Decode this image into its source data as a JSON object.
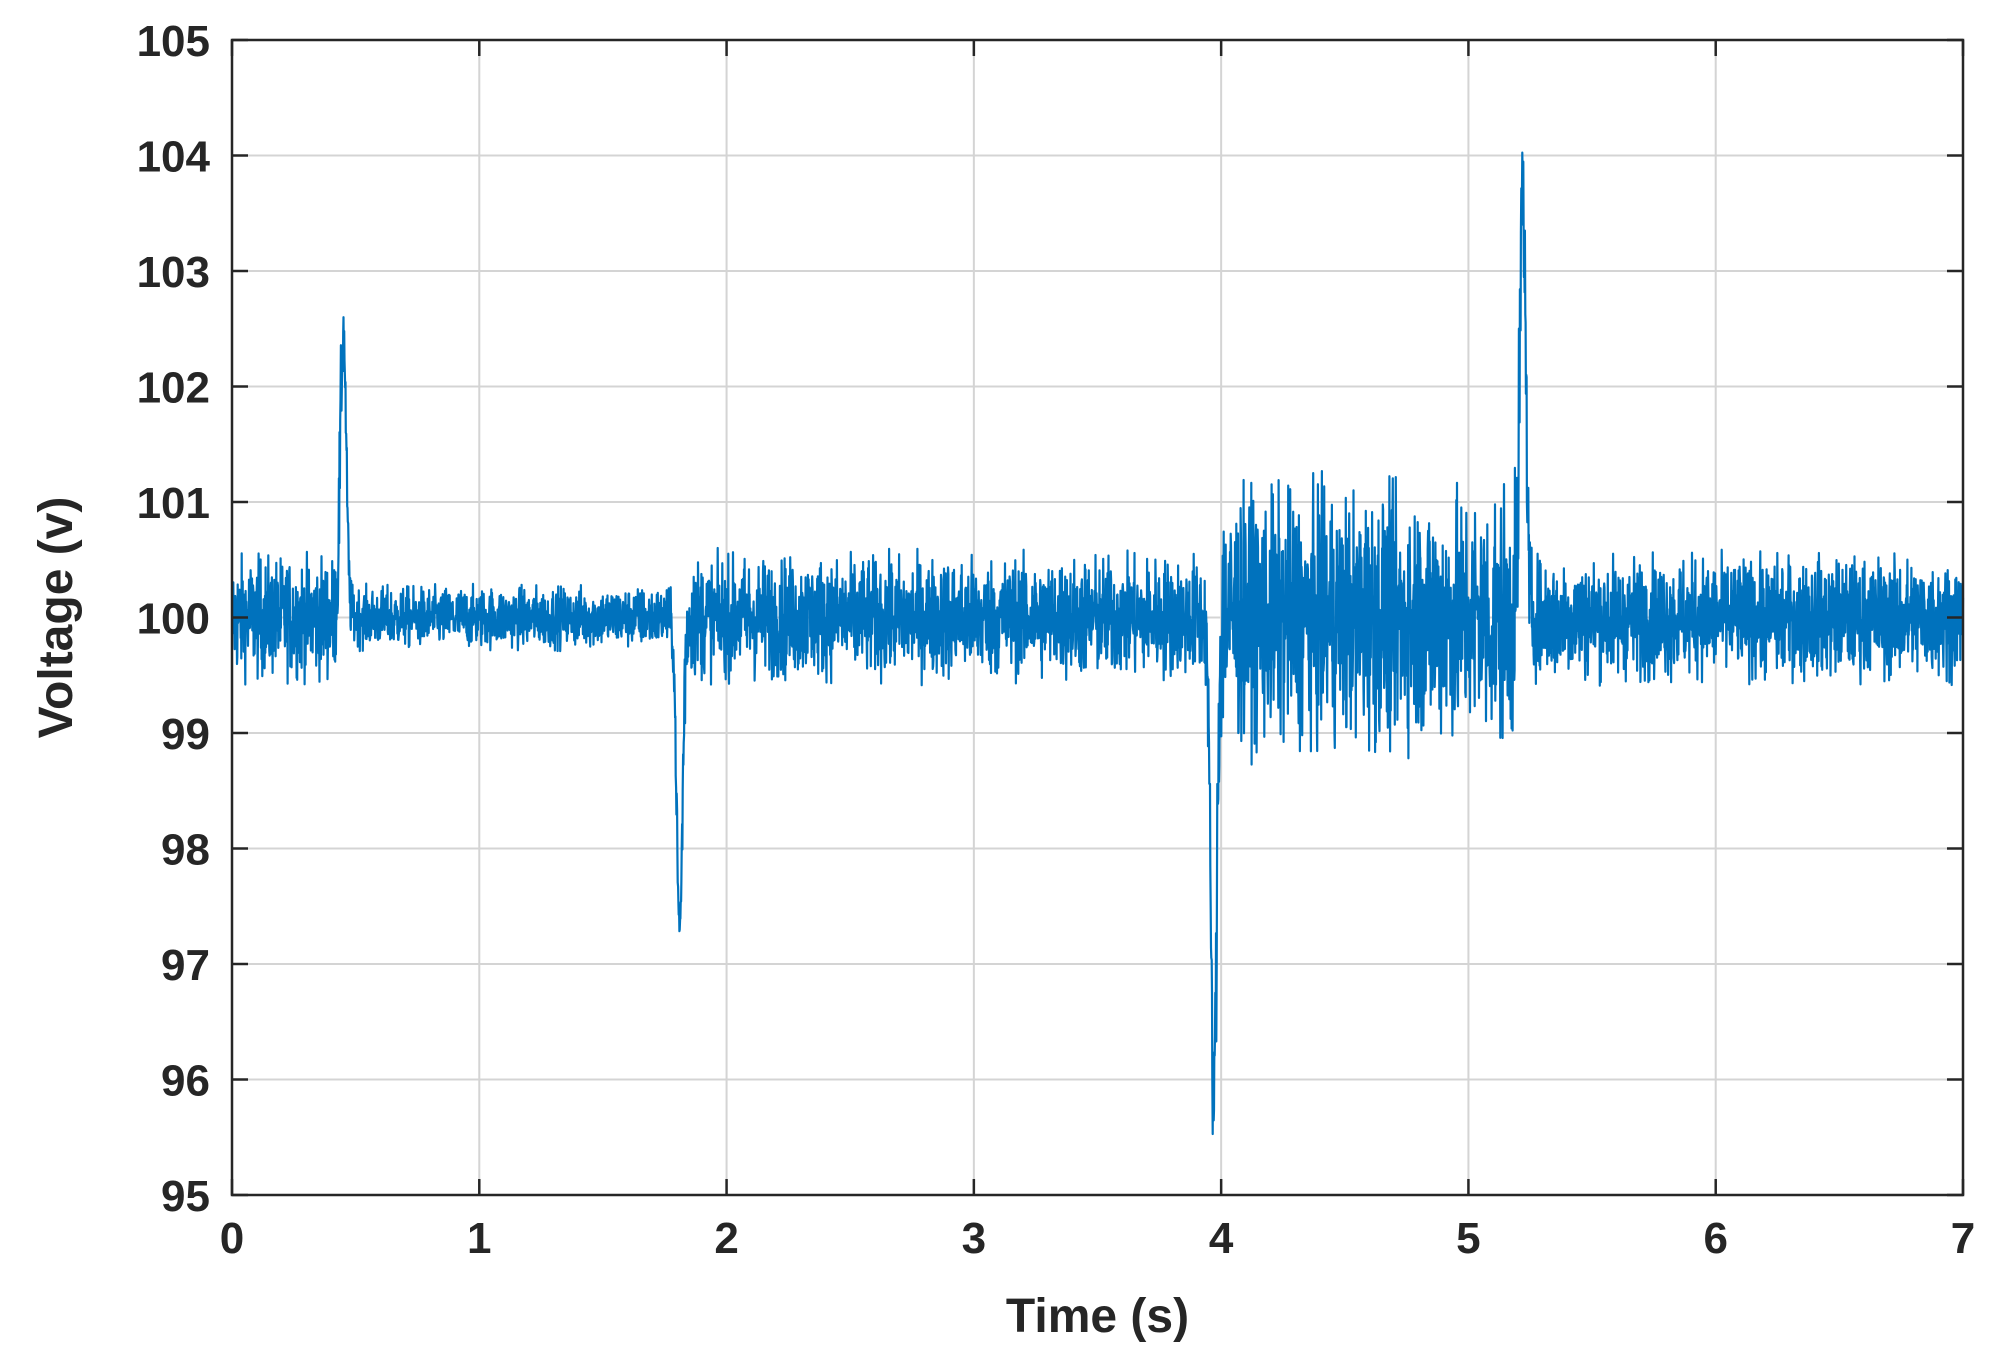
{
  "chart_data": {
    "type": "line",
    "title": "",
    "xlabel": "Time (s)",
    "ylabel": "Voltage (v)",
    "xlim": [
      0,
      7
    ],
    "ylim": [
      95,
      105
    ],
    "xticks": [
      "0",
      "1",
      "2",
      "3",
      "4",
      "5",
      "6",
      "7"
    ],
    "yticks": [
      "95",
      "96",
      "97",
      "98",
      "99",
      "100",
      "101",
      "102",
      "103",
      "104",
      "105"
    ],
    "grid": true,
    "line_color": "#0072BD",
    "signal_nominal": 100,
    "segments": [
      {
        "t_start": 0.0,
        "t_end": 0.45,
        "amplitude": 0.55
      },
      {
        "t_start": 0.45,
        "t_end": 1.82,
        "amplitude": 0.28
      },
      {
        "t_start": 1.82,
        "t_end": 3.98,
        "amplitude": 0.55
      },
      {
        "t_start": 3.98,
        "t_end": 5.22,
        "amplitude": 1.15
      },
      {
        "t_start": 5.22,
        "t_end": 7.0,
        "amplitude": 0.55
      }
    ],
    "events": [
      {
        "t": 0.45,
        "peak": 102.5
      },
      {
        "t": 1.81,
        "peak": 97.3
      },
      {
        "t": 3.97,
        "peak": 95.8
      },
      {
        "t": 5.22,
        "peak": 103.7
      }
    ]
  }
}
